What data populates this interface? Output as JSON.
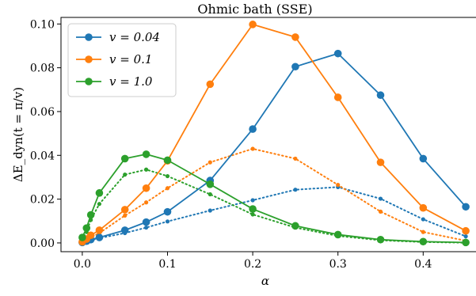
{
  "chart_data": {
    "type": "line",
    "title": "Ohmic bath (SSE)",
    "xlabel": "α",
    "ylabel": "ΔE_dyn(t = π/v)",
    "xlim": [
      -0.025,
      0.475
    ],
    "ylim": [
      -0.004,
      0.103
    ],
    "x_ticks": [
      0.0,
      0.1,
      0.2,
      0.3,
      0.4
    ],
    "x_tick_labels": [
      "0.0",
      "0.1",
      "0.2",
      "0.3",
      "0.4"
    ],
    "y_ticks": [
      0.0,
      0.02,
      0.04,
      0.06,
      0.08,
      0.1
    ],
    "y_tick_labels": [
      "0.00",
      "0.02",
      "0.04",
      "0.06",
      "0.08",
      "0.10"
    ],
    "grid": false,
    "legend_position": "top-left",
    "series": [
      {
        "name": "v = 0.04",
        "style": "solid",
        "color": "#1f77b4",
        "x": [
          0.0,
          0.005,
          0.01,
          0.02,
          0.05,
          0.075,
          0.1,
          0.15,
          0.2,
          0.25,
          0.3,
          0.35,
          0.4,
          0.45
        ],
        "y": [
          0.0002,
          0.0008,
          0.0015,
          0.0025,
          0.0058,
          0.0095,
          0.0142,
          0.0285,
          0.052,
          0.0805,
          0.0865,
          0.0675,
          0.0385,
          0.0165
        ]
      },
      {
        "name": "v = 0.1",
        "style": "solid",
        "color": "#ff7f0e",
        "x": [
          0.0,
          0.005,
          0.01,
          0.02,
          0.05,
          0.075,
          0.1,
          0.15,
          0.2,
          0.25,
          0.3,
          0.35,
          0.4,
          0.45
        ],
        "y": [
          0.0005,
          0.0018,
          0.0035,
          0.0058,
          0.0152,
          0.025,
          0.0375,
          0.0725,
          0.0998,
          0.094,
          0.0665,
          0.0368,
          0.016,
          0.0055
        ]
      },
      {
        "name": "v = 1.0",
        "style": "solid",
        "color": "#2ca02c",
        "x": [
          0.0,
          0.005,
          0.01,
          0.02,
          0.05,
          0.075,
          0.1,
          0.15,
          0.2,
          0.25,
          0.3,
          0.35,
          0.4,
          0.45
        ],
        "y": [
          0.0025,
          0.0068,
          0.0128,
          0.0228,
          0.0385,
          0.0405,
          0.0378,
          0.0268,
          0.0155,
          0.0078,
          0.0038,
          0.0015,
          0.0006,
          0.0002
        ]
      },
      {
        "style": "dotted",
        "color": "#1f77b4",
        "x": [
          0.0,
          0.005,
          0.01,
          0.02,
          0.05,
          0.075,
          0.1,
          0.15,
          0.2,
          0.25,
          0.3,
          0.35,
          0.4,
          0.45
        ],
        "y": [
          0.0001,
          0.0006,
          0.0012,
          0.0022,
          0.0045,
          0.007,
          0.0098,
          0.0148,
          0.0195,
          0.0243,
          0.0255,
          0.0202,
          0.0108,
          0.003
        ]
      },
      {
        "style": "dotted",
        "color": "#ff7f0e",
        "x": [
          0.0,
          0.005,
          0.01,
          0.02,
          0.05,
          0.075,
          0.1,
          0.15,
          0.2,
          0.25,
          0.3,
          0.35,
          0.4,
          0.45
        ],
        "y": [
          0.0002,
          0.0012,
          0.0025,
          0.0045,
          0.0125,
          0.0185,
          0.025,
          0.0368,
          0.043,
          0.0385,
          0.0265,
          0.0143,
          0.005,
          0.001
        ]
      },
      {
        "style": "dotted",
        "color": "#2ca02c",
        "x": [
          0.0,
          0.005,
          0.01,
          0.02,
          0.05,
          0.075,
          0.1,
          0.15,
          0.2,
          0.25,
          0.3,
          0.35,
          0.4,
          0.45
        ],
        "y": [
          0.0015,
          0.005,
          0.0105,
          0.0178,
          0.0312,
          0.0335,
          0.0305,
          0.0222,
          0.013,
          0.007,
          0.0032,
          0.0012,
          0.0004,
          0.0001
        ]
      }
    ]
  }
}
